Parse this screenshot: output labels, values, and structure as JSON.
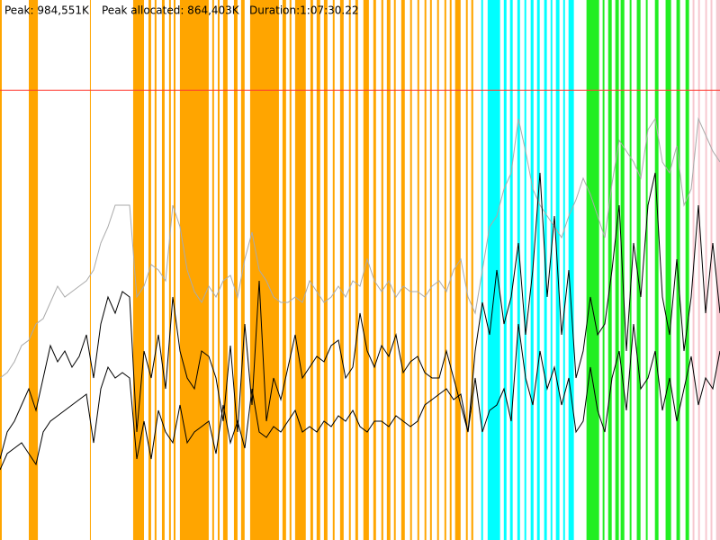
{
  "chart_data": {
    "type": "line",
    "annotations": [
      "Peak: 984,551K",
      "Peak allocated: 864,403K",
      "Duration:1:07:30.22"
    ],
    "xlim": [
      0,
      4050
    ],
    "ylim": [
      0,
      100
    ],
    "reference_line": {
      "value": 83.3,
      "color": "#ff3b30"
    },
    "bands": [
      {
        "color": "#ffa500",
        "spans": [
          [
            0,
            10
          ],
          [
            162,
            213
          ],
          [
            506,
            511
          ],
          [
            749,
            810
          ],
          [
            835,
            850
          ],
          [
            870,
            880
          ],
          [
            911,
            926
          ],
          [
            951,
            961
          ],
          [
            977,
            987
          ],
          [
            1012,
            1174
          ],
          [
            1194,
            1204
          ],
          [
            1225,
            1235
          ],
          [
            1255,
            1280
          ],
          [
            1316,
            1336
          ],
          [
            1356,
            1376
          ],
          [
            1407,
            1569
          ],
          [
            1589,
            1609
          ],
          [
            1629,
            1639
          ],
          [
            1660,
            1720
          ],
          [
            1746,
            1761
          ],
          [
            1781,
            1801
          ],
          [
            1822,
            1842
          ],
          [
            1872,
            1882
          ],
          [
            1913,
            1933
          ],
          [
            1963,
            1973
          ],
          [
            1999,
            2014
          ],
          [
            2044,
            2075
          ],
          [
            2100,
            2115
          ],
          [
            2145,
            2156
          ],
          [
            2176,
            2196
          ],
          [
            2216,
            2226
          ],
          [
            2257,
            2277
          ],
          [
            2307,
            2317
          ],
          [
            2348,
            2358
          ],
          [
            2388,
            2398
          ],
          [
            2419,
            2429
          ],
          [
            2459,
            2469
          ],
          [
            2500,
            2510
          ],
          [
            2530,
            2540
          ],
          [
            2560,
            2591
          ],
          [
            2621,
            2631
          ],
          [
            2651,
            2662
          ]
        ]
      },
      {
        "color": "#00ffff",
        "spans": [
          [
            2707,
            2717
          ],
          [
            2743,
            2813
          ],
          [
            2834,
            2849
          ],
          [
            2869,
            2884
          ],
          [
            2910,
            2925
          ],
          [
            2950,
            2960
          ],
          [
            2985,
            3001
          ],
          [
            3021,
            3036
          ],
          [
            3061,
            3076
          ],
          [
            3097,
            3107
          ],
          [
            3127,
            3147
          ],
          [
            3168,
            3178
          ],
          [
            3198,
            3228
          ]
        ]
      },
      {
        "color": "#22ee22",
        "spans": [
          [
            3299,
            3370
          ],
          [
            3390,
            3400
          ],
          [
            3421,
            3441
          ],
          [
            3461,
            3481
          ],
          [
            3491,
            3512
          ],
          [
            3542,
            3552
          ],
          [
            3582,
            3603
          ],
          [
            3633,
            3643
          ],
          [
            3684,
            3704
          ],
          [
            3744,
            3775
          ],
          [
            3805,
            3825
          ],
          [
            3856,
            3876
          ]
        ]
      },
      {
        "color": "#f7c8d0",
        "spans": [
          [
            3896,
            3906
          ],
          [
            3927,
            3937
          ],
          [
            3967,
            3977
          ],
          [
            3997,
            4007
          ],
          [
            4028,
            4050
          ]
        ]
      }
    ],
    "x": [
      0,
      40.5,
      81,
      121.5,
      162,
      202.5,
      243,
      283.5,
      324,
      364.5,
      405,
      445.5,
      486,
      526.5,
      567,
      607.5,
      648,
      688.5,
      729,
      769.5,
      810,
      850.5,
      891,
      931.5,
      972,
      1012.5,
      1053,
      1093.5,
      1134,
      1174.5,
      1215,
      1255.5,
      1296,
      1336.5,
      1377,
      1417.5,
      1458,
      1498.5,
      1539,
      1579.5,
      1620,
      1660.5,
      1701,
      1741.5,
      1782,
      1822.5,
      1863,
      1903.5,
      1944,
      1984.5,
      2025,
      2065.5,
      2106,
      2146.5,
      2187,
      2227.5,
      2268,
      2308.5,
      2349,
      2389.5,
      2430,
      2470.5,
      2511,
      2551.5,
      2592,
      2632.5,
      2673,
      2713.5,
      2754,
      2794.5,
      2835,
      2875.5,
      2916,
      2956.5,
      2997,
      3037.5,
      3078,
      3118.5,
      3159,
      3199.5,
      3240,
      3280.5,
      3321,
      3361.5,
      3402,
      3442.5,
      3483,
      3523.5,
      3564,
      3604.5,
      3645,
      3685.5,
      3726,
      3766.5,
      3807,
      3847.5,
      3888,
      3928.5,
      3969,
      4009.5,
      4050
    ],
    "series": [
      {
        "color": "#aaaaaa",
        "values": [
          30,
          31,
          33,
          36,
          37,
          40,
          41,
          44,
          47,
          45,
          46,
          47,
          48,
          50,
          55,
          58,
          62,
          62,
          62,
          45,
          47,
          51,
          50,
          48,
          62,
          58,
          50,
          46,
          44,
          47,
          45,
          48,
          49,
          45,
          52,
          57,
          50,
          48,
          45,
          44,
          44,
          45,
          44,
          48,
          46,
          44,
          45,
          47,
          45,
          48,
          47,
          52,
          48,
          46,
          48,
          45,
          47,
          46,
          46,
          45,
          47,
          48,
          46,
          50,
          52,
          45,
          42,
          50,
          58,
          60,
          65,
          68,
          78,
          72,
          65,
          62,
          60,
          58,
          56,
          60,
          63,
          67,
          64,
          60,
          56,
          66,
          74,
          72,
          70,
          67,
          76,
          78,
          70,
          68,
          73,
          62,
          65,
          78,
          75,
          72,
          70
        ]
      },
      {
        "color": "#000000",
        "values": [
          15,
          20,
          22,
          25,
          28,
          24,
          30,
          36,
          33,
          35,
          32,
          34,
          38,
          30,
          40,
          45,
          42,
          46,
          45,
          20,
          35,
          30,
          38,
          28,
          45,
          35,
          30,
          28,
          35,
          34,
          30,
          22,
          36,
          20,
          40,
          25,
          48,
          22,
          30,
          26,
          32,
          38,
          30,
          32,
          34,
          33,
          36,
          37,
          30,
          32,
          42,
          35,
          32,
          36,
          34,
          38,
          31,
          33,
          34,
          31,
          30,
          30,
          35,
          30,
          25,
          20,
          35,
          44,
          38,
          50,
          40,
          45,
          55,
          38,
          50,
          68,
          45,
          60,
          38,
          50,
          30,
          35,
          45,
          38,
          40,
          50,
          62,
          35,
          55,
          45,
          62,
          68,
          45,
          38,
          52,
          35,
          45,
          62,
          42,
          55,
          42
        ]
      },
      {
        "color": "#000000",
        "values": [
          13,
          16,
          17,
          18,
          16,
          14,
          20,
          22,
          23,
          24,
          25,
          26,
          27,
          18,
          28,
          32,
          30,
          31,
          30,
          15,
          22,
          15,
          24,
          20,
          18,
          25,
          18,
          20,
          21,
          22,
          16,
          25,
          18,
          22,
          17,
          28,
          20,
          19,
          21,
          20,
          22,
          24,
          20,
          21,
          20,
          22,
          21,
          23,
          22,
          24,
          21,
          20,
          22,
          22,
          21,
          23,
          22,
          21,
          22,
          25,
          26,
          27,
          28,
          26,
          27,
          20,
          30,
          20,
          24,
          25,
          28,
          22,
          40,
          30,
          25,
          35,
          28,
          32,
          25,
          30,
          20,
          22,
          32,
          24,
          20,
          30,
          35,
          24,
          40,
          28,
          30,
          35,
          24,
          30,
          22,
          28,
          34,
          25,
          30,
          28,
          35
        ]
      }
    ]
  }
}
